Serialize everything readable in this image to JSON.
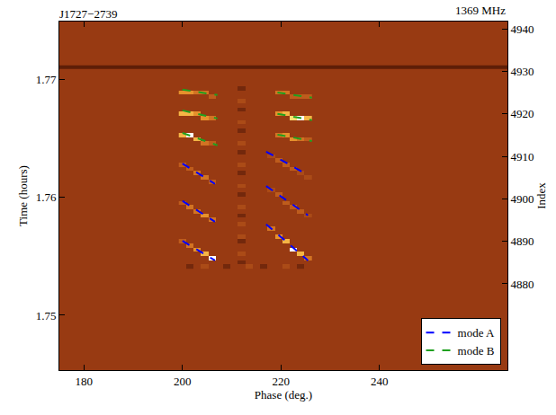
{
  "chart_data": {
    "type": "heatmap",
    "title": "J1727−2739",
    "annotations": [
      "1369 MHz"
    ],
    "x_label": "Phase (deg.)",
    "y_label": "Index",
    "y2_label": "Time (hours)",
    "xlim": [
      175,
      266
    ],
    "xticks": [
      180,
      200,
      220,
      240
    ],
    "ylim": [
      4859.7,
      4941.7
    ],
    "yticks": [
      4880,
      4890,
      4900,
      4910,
      4920,
      4930,
      4940
    ],
    "y2lim": [
      1.74536,
      1.77487
    ],
    "y2ticks": [
      1.75,
      1.76,
      1.77
    ],
    "grid": false,
    "legend": "lower right",
    "color_range": [
      0,
      10
    ],
    "zero_row_index": 4931,
    "cells": [
      [
        200,
        4908,
        5
      ],
      [
        201.5,
        4907,
        5
      ],
      [
        203,
        4906,
        6
      ],
      [
        204.5,
        4905,
        6
      ],
      [
        206,
        4904,
        5
      ],
      [
        200,
        4899,
        5
      ],
      [
        201.5,
        4898,
        6
      ],
      [
        203,
        4897,
        6
      ],
      [
        204.5,
        4896,
        7
      ],
      [
        206,
        4895,
        6
      ],
      [
        200,
        4890,
        5
      ],
      [
        201.5,
        4889,
        6
      ],
      [
        203,
        4888,
        7
      ],
      [
        204.5,
        4887,
        8
      ],
      [
        206,
        4886,
        10
      ],
      [
        218,
        4910,
        4
      ],
      [
        219.5,
        4909,
        5
      ],
      [
        221,
        4908,
        5
      ],
      [
        222.5,
        4907,
        5
      ],
      [
        224,
        4906,
        4
      ],
      [
        225.5,
        4905,
        4
      ],
      [
        218,
        4902,
        4
      ],
      [
        219.5,
        4901,
        5
      ],
      [
        221,
        4899,
        5
      ],
      [
        222.5,
        4898,
        5
      ],
      [
        224,
        4897,
        5
      ],
      [
        225.5,
        4896,
        4
      ],
      [
        218,
        4893,
        6
      ],
      [
        219.5,
        4891,
        7
      ],
      [
        221,
        4890,
        8
      ],
      [
        222.5,
        4888,
        10
      ],
      [
        224,
        4887,
        8
      ],
      [
        225.5,
        4886,
        6
      ],
      [
        200,
        4925,
        7
      ],
      [
        201.5,
        4925,
        7
      ],
      [
        203,
        4925,
        6
      ],
      [
        204.5,
        4925,
        6
      ],
      [
        206,
        4924,
        5
      ],
      [
        200,
        4920,
        8
      ],
      [
        201.5,
        4920,
        8
      ],
      [
        203,
        4920,
        7
      ],
      [
        204.5,
        4919,
        7
      ],
      [
        206,
        4919,
        6
      ],
      [
        200,
        4915,
        8
      ],
      [
        201.5,
        4915,
        10
      ],
      [
        203,
        4914,
        8
      ],
      [
        204.5,
        4913,
        6
      ],
      [
        206,
        4913,
        5
      ],
      [
        219.5,
        4925,
        6
      ],
      [
        221,
        4925,
        6
      ],
      [
        222.5,
        4924,
        5
      ],
      [
        224,
        4924,
        5
      ],
      [
        225.5,
        4924,
        5
      ],
      [
        219.5,
        4920,
        7
      ],
      [
        221,
        4920,
        8
      ],
      [
        222.5,
        4919,
        9
      ],
      [
        224,
        4919,
        10
      ],
      [
        225.5,
        4919,
        8
      ],
      [
        219.5,
        4915,
        6
      ],
      [
        221,
        4915,
        7
      ],
      [
        222.5,
        4914,
        7
      ],
      [
        224,
        4914,
        6
      ],
      [
        225.5,
        4914,
        5
      ],
      [
        212,
        4884,
        3
      ],
      [
        212,
        4885,
        2
      ],
      [
        212,
        4886,
        3
      ],
      [
        212,
        4887,
        4
      ],
      [
        212,
        4888,
        3
      ],
      [
        212,
        4889,
        3
      ],
      [
        212,
        4890,
        2
      ],
      [
        212,
        4891,
        4
      ],
      [
        212,
        4892,
        3
      ],
      [
        212,
        4893,
        3
      ],
      [
        212,
        4894,
        4
      ],
      [
        212,
        4895,
        3
      ],
      [
        212,
        4896,
        2
      ],
      [
        212,
        4897,
        3
      ],
      [
        212,
        4898,
        4
      ],
      [
        212,
        4899,
        3
      ],
      [
        212,
        4900,
        3
      ],
      [
        212,
        4901,
        2
      ],
      [
        212,
        4902,
        3
      ],
      [
        212,
        4903,
        4
      ],
      [
        212,
        4904,
        3
      ],
      [
        212,
        4905,
        3
      ],
      [
        212,
        4906,
        2
      ],
      [
        212,
        4907,
        3
      ],
      [
        212,
        4908,
        4
      ],
      [
        212,
        4909,
        3
      ],
      [
        212,
        4910,
        3
      ],
      [
        212,
        4911,
        2
      ],
      [
        212,
        4912,
        3
      ],
      [
        212,
        4913,
        4
      ],
      [
        212,
        4914,
        3
      ],
      [
        212,
        4915,
        3
      ],
      [
        212,
        4916,
        2
      ],
      [
        212,
        4917,
        3
      ],
      [
        212,
        4918,
        4
      ],
      [
        212,
        4919,
        3
      ],
      [
        212,
        4920,
        3
      ],
      [
        212,
        4921,
        2
      ],
      [
        212,
        4922,
        3
      ],
      [
        212,
        4923,
        4
      ],
      [
        212,
        4924,
        3
      ],
      [
        212,
        4925,
        3
      ],
      [
        212,
        4926,
        2
      ],
      [
        212,
        4927,
        3
      ],
      [
        200,
        4884,
        3
      ],
      [
        201.5,
        4884,
        2
      ],
      [
        203,
        4884,
        3
      ],
      [
        204.5,
        4884,
        4
      ],
      [
        206,
        4884,
        3
      ],
      [
        207.5,
        4884,
        3
      ],
      [
        209,
        4884,
        2
      ],
      [
        210.5,
        4884,
        3
      ],
      [
        213.5,
        4884,
        4
      ],
      [
        215,
        4884,
        3
      ],
      [
        216.5,
        4884,
        2
      ],
      [
        218,
        4884,
        3
      ],
      [
        219.5,
        4884,
        3
      ],
      [
        221,
        4884,
        4
      ],
      [
        222.5,
        4884,
        3
      ],
      [
        224,
        4884,
        2
      ],
      [
        225.5,
        4884,
        3
      ]
    ],
    "series": [
      {
        "name": "mode A",
        "color": "#0000ff",
        "line_style": "dash",
        "x": [
          200,
          206.6,
          null,
          200,
          206.6,
          null,
          200,
          206.6,
          null,
          217,
          225.5,
          null,
          217,
          225.5,
          null,
          217,
          225.5
        ],
        "values": [
          4908.3,
          4903.5,
          null,
          4899.5,
          4894.6,
          null,
          4890.1,
          4885.5,
          null,
          4911.1,
          4905.6,
          null,
          4903.0,
          4896.1,
          null,
          4894.0,
          4885.5
        ]
      },
      {
        "name": "mode B",
        "color": "#1fa01f",
        "line_style": "dash",
        "x": [
          200,
          207.1,
          null,
          200,
          207.1,
          null,
          200,
          207.1,
          null,
          219.3,
          226.3,
          null,
          219.3,
          226.3,
          null,
          219.3,
          226.3
        ],
        "values": [
          4925.7,
          4924.4,
          null,
          4920.8,
          4918.9,
          null,
          4915.5,
          4912.6,
          null,
          4925.0,
          4923.8,
          null,
          4920.0,
          4918.5,
          null,
          4915.1,
          4913.6
        ]
      }
    ]
  }
}
